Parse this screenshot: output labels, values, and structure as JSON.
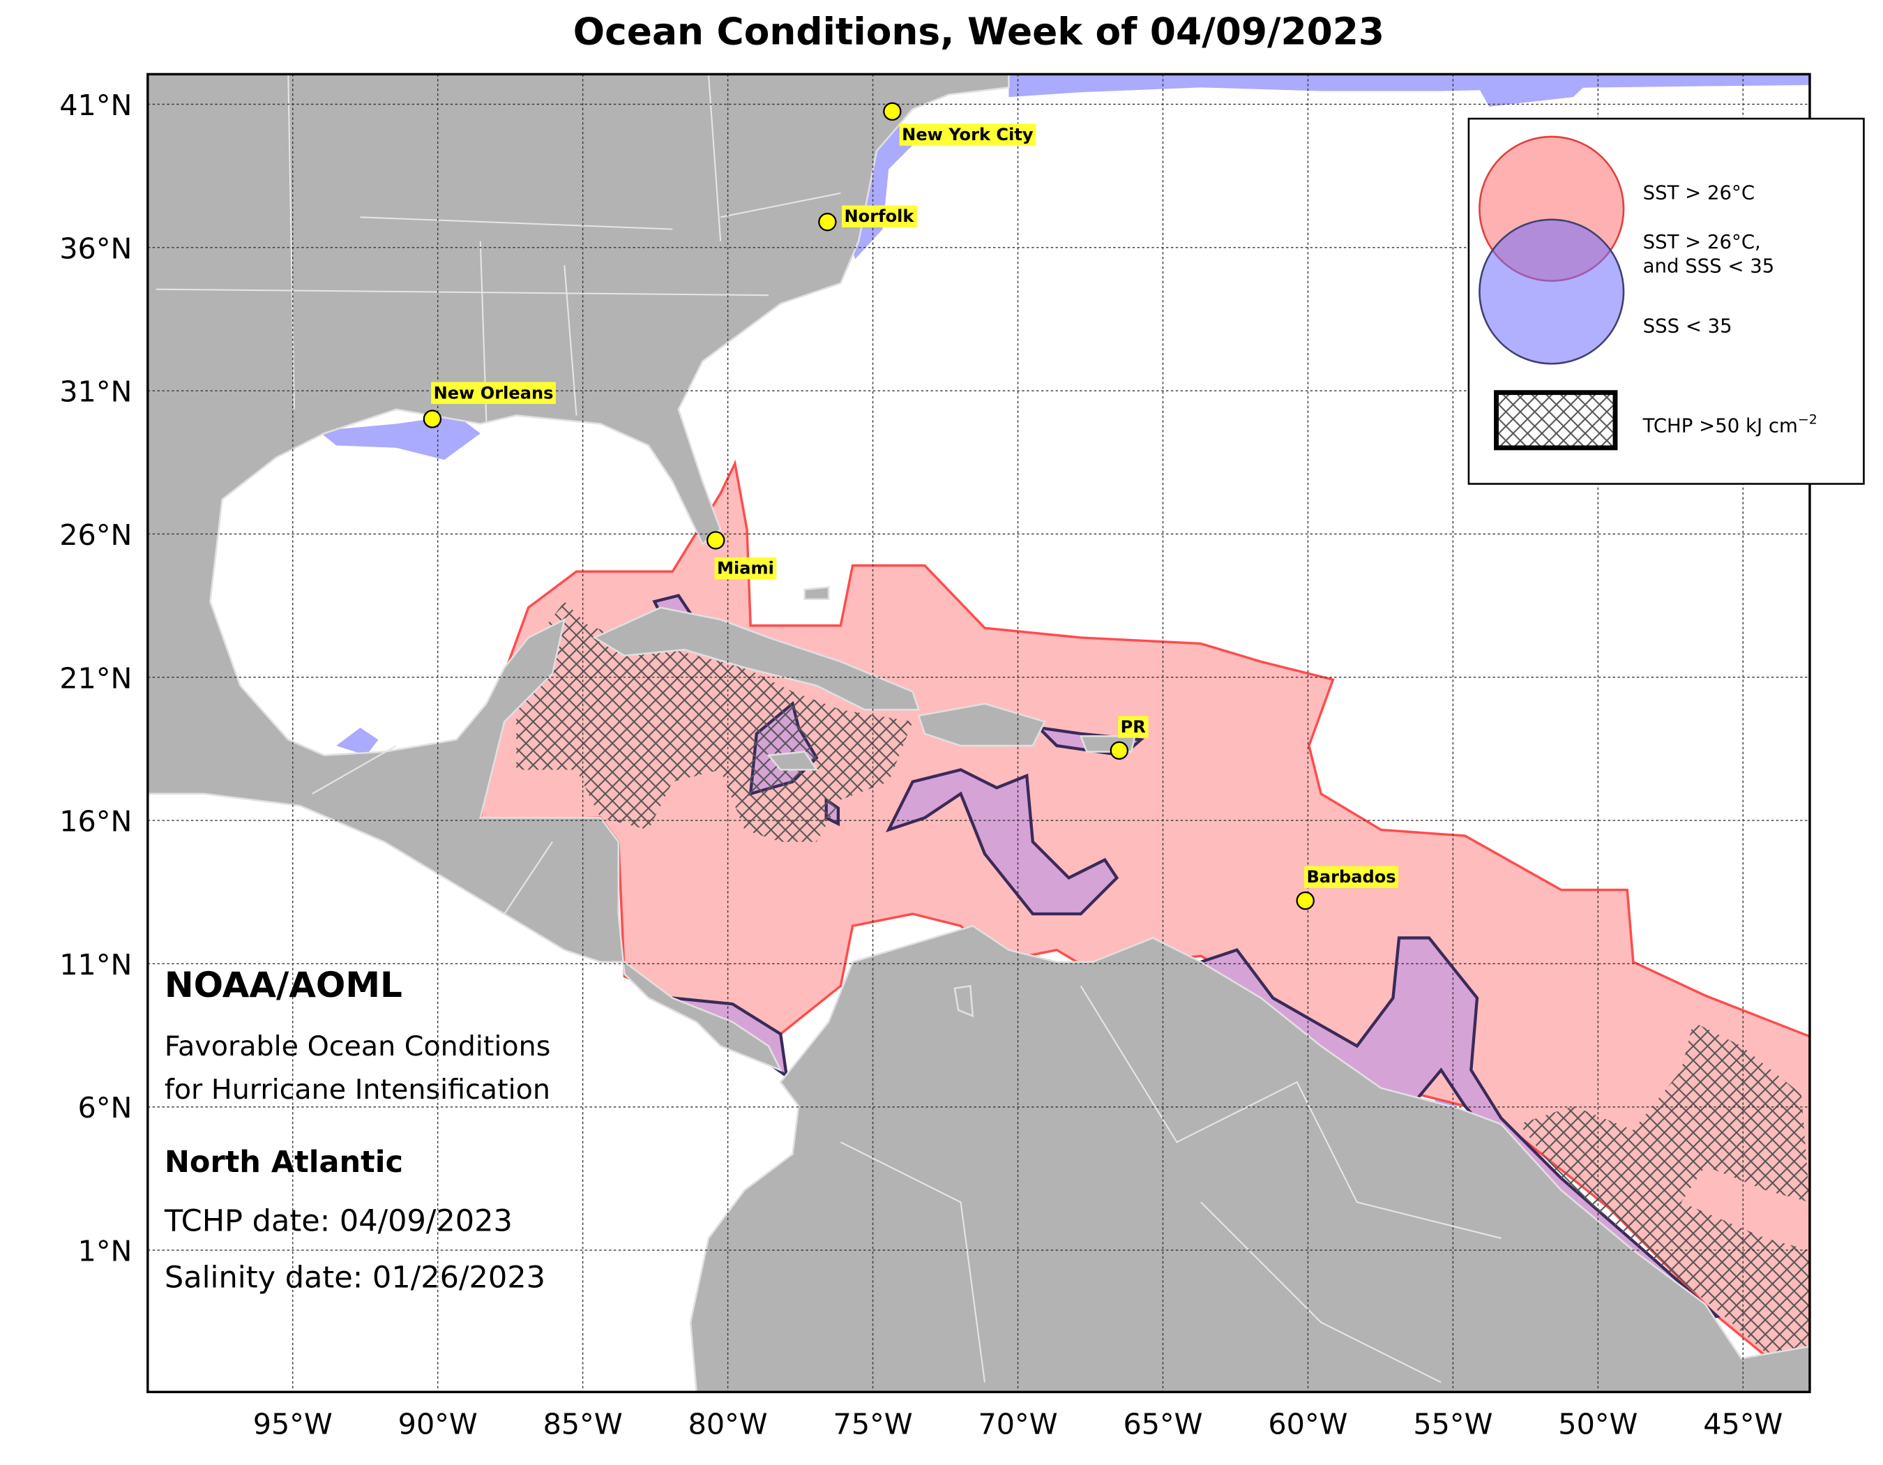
{
  "title": "Ocean Conditions, Week of 04/09/2023",
  "map": {
    "lonlim": [
      -100,
      -42.7
    ],
    "latlim": [
      -3.95,
      42.05
    ],
    "lon_ticks": [
      {
        "value": -95,
        "label": "95°W"
      },
      {
        "value": -90,
        "label": "90°W"
      },
      {
        "value": -85,
        "label": "85°W"
      },
      {
        "value": -80,
        "label": "80°W"
      },
      {
        "value": -75,
        "label": "75°W"
      },
      {
        "value": -70,
        "label": "70°W"
      },
      {
        "value": -65,
        "label": "65°W"
      },
      {
        "value": -60,
        "label": "60°W"
      },
      {
        "value": -55,
        "label": "55°W"
      },
      {
        "value": -50,
        "label": "50°W"
      },
      {
        "value": -45,
        "label": "45°W"
      }
    ],
    "lat_ticks": [
      {
        "value": 41,
        "label": "41°N"
      },
      {
        "value": 36,
        "label": "36°N"
      },
      {
        "value": 31,
        "label": "31°N"
      },
      {
        "value": 26,
        "label": "26°N"
      },
      {
        "value": 21,
        "label": "21°N"
      },
      {
        "value": 16,
        "label": "16°N"
      },
      {
        "value": 11,
        "label": "11°N"
      },
      {
        "value": 6,
        "label": "6°N"
      },
      {
        "value": 1,
        "label": "1°N"
      }
    ]
  },
  "cities": [
    "New York City",
    "Norfolk",
    "New Orleans",
    "Miami",
    "PR",
    "Barbados"
  ],
  "legend": [
    "SST > 26°C",
    [
      "SST > 26°C,",
      "and SSS < 35"
    ],
    "SSS < 35",
    {
      "text": "TCHP >50 kJ cm",
      "sup": "−2"
    }
  ],
  "annotation": {
    "org": "NOAA/AOML",
    "subtitle": [
      "Favorable Ocean Conditions",
      "for Hurricane Intensification"
    ],
    "region": "North Atlantic",
    "tchp_date": "TCHP date: 04/09/2023",
    "salinity_date": "Salinity date: 01/26/2023"
  }
}
